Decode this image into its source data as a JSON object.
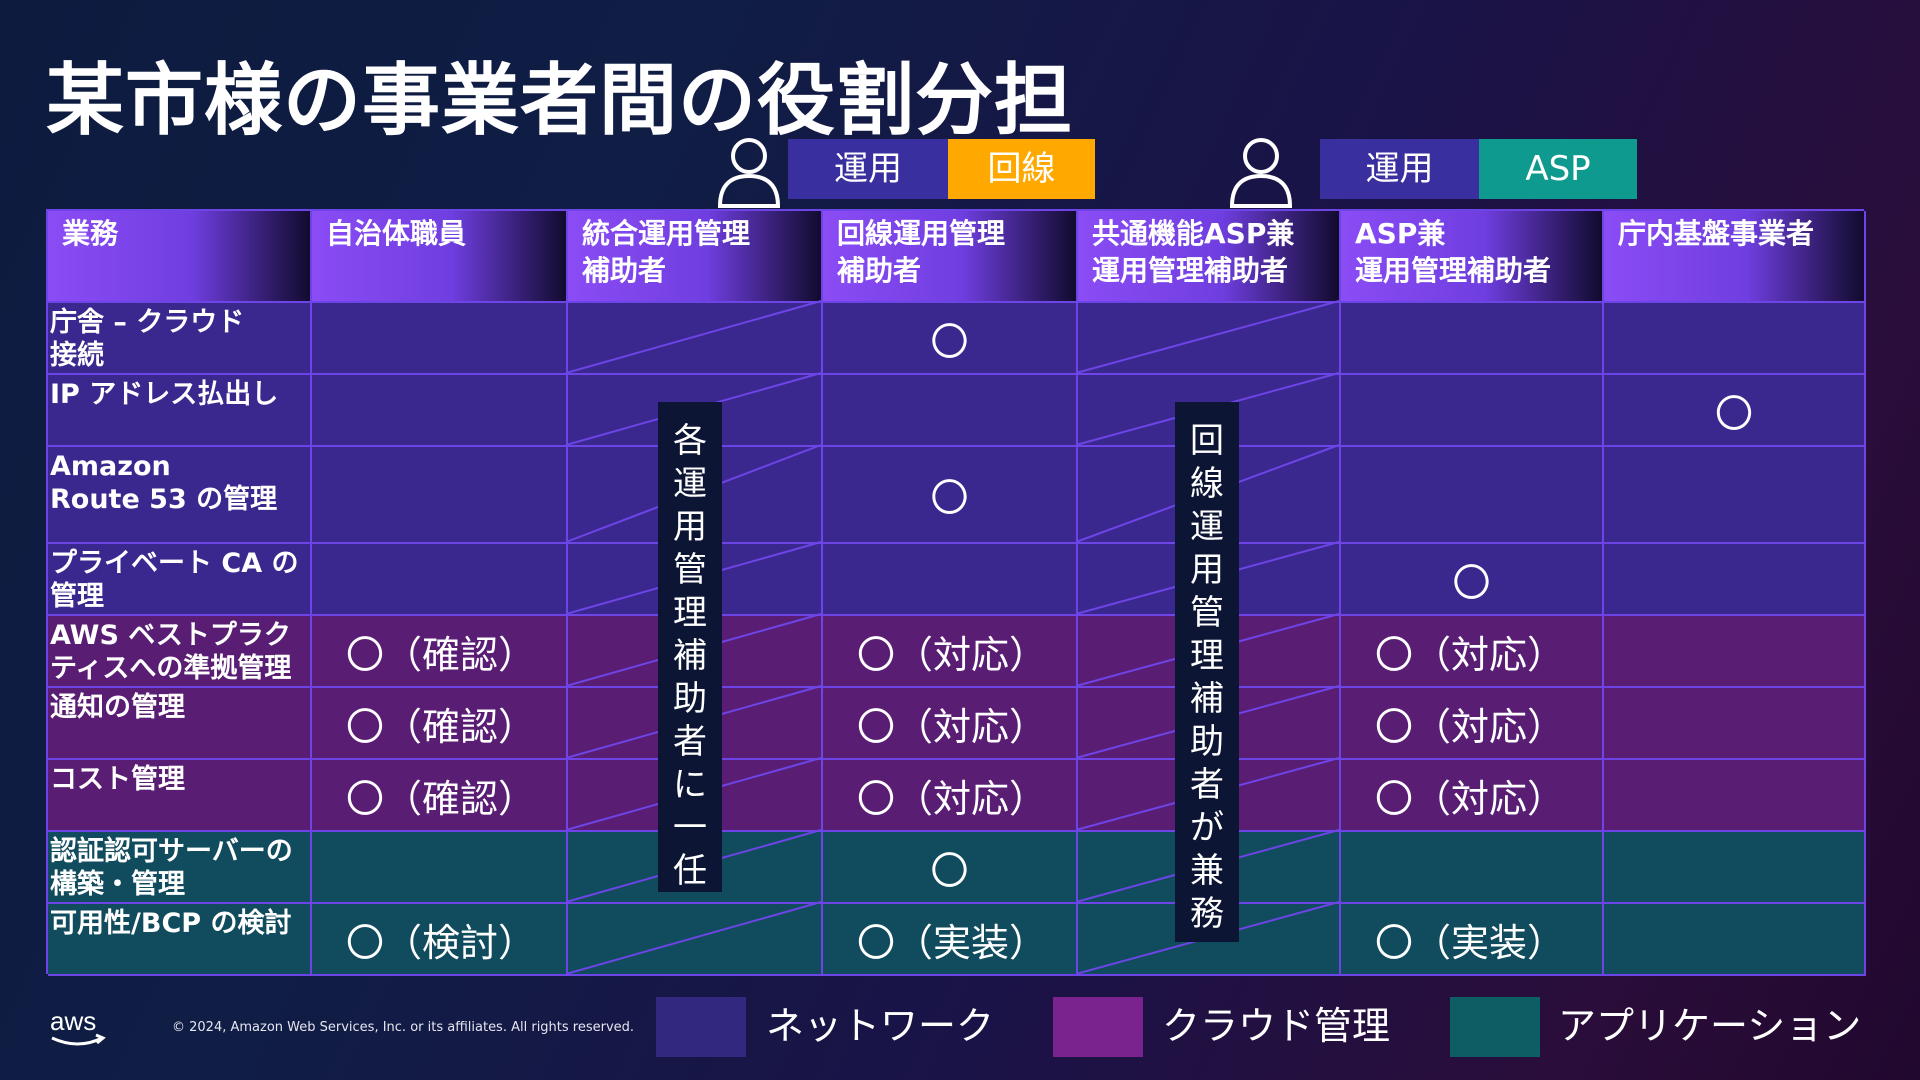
{
  "title": "某市様の事業者間の役割分担",
  "tags_left": {
    "ops": "運用",
    "line": "回線"
  },
  "tags_right": {
    "ops": "運用",
    "asp": "ASP"
  },
  "headers": [
    "業務",
    "自治体職員",
    "統合運用管理\n補助者",
    "回線運用管理\n補助者",
    "共通機能ASP兼\n運用管理補助者",
    "ASP兼\n運用管理補助者",
    "庁内基盤事業者"
  ],
  "rows": [
    {
      "label": "庁舎 – クラウド\n接続",
      "category": "net",
      "cells": [
        "",
        "",
        "〇",
        "",
        "",
        ""
      ]
    },
    {
      "label": "IP アドレス払出し",
      "category": "net",
      "cells": [
        "",
        "",
        "",
        "",
        "",
        "〇"
      ]
    },
    {
      "label": "Amazon\nRoute 53 の管理",
      "category": "net",
      "cells": [
        "",
        "",
        "〇",
        "",
        "",
        ""
      ]
    },
    {
      "label": "プライベート CA の\n管理",
      "category": "net",
      "cells": [
        "",
        "",
        "",
        "",
        "〇",
        ""
      ]
    },
    {
      "label": "AWS ベストプラク\nティスへの準拠管理",
      "category": "cld",
      "cells": [
        "〇（確認）",
        "",
        "〇（対応）",
        "",
        "〇（対応）",
        ""
      ]
    },
    {
      "label": "通知の管理",
      "category": "cld",
      "cells": [
        "〇（確認）",
        "",
        "〇（対応）",
        "",
        "〇（対応）",
        ""
      ]
    },
    {
      "label": "コスト管理",
      "category": "cld",
      "cells": [
        "〇（確認）",
        "",
        "〇（対応）",
        "",
        "〇（対応）",
        ""
      ]
    },
    {
      "label": "認証認可サーバーの\n構築・管理",
      "category": "app",
      "cells": [
        "",
        "",
        "〇",
        "",
        "",
        ""
      ]
    },
    {
      "label": "可用性/BCP の検討",
      "category": "app",
      "cells": [
        "〇（検討）",
        "",
        "〇（実装）",
        "",
        "〇（実装）",
        ""
      ]
    }
  ],
  "vertical_notes": {
    "left": "各運用管理補助者に一任",
    "right": "回線運用管理補助者が兼務"
  },
  "legend": {
    "network": "ネットワーク",
    "cloud": "クラウド管理",
    "application": "アプリケーション"
  },
  "colors": {
    "network": "#3a288f",
    "cloud": "#5a1d74",
    "application": "#114b5e",
    "legend_network": "#33287f",
    "legend_cloud": "#7a238e",
    "legend_application": "#0d5e64",
    "tag_ops": "#3a2f9e",
    "tag_line": "#ffa800",
    "tag_asp": "#0e9a8e",
    "grid_line": "#6d45e6"
  },
  "footer": {
    "logo_text": "aws",
    "copyright": "© 2024, Amazon Web Services, Inc. or its affiliates. All rights reserved."
  },
  "icons": {
    "person": "person-outline-icon",
    "logo": "aws-logo-icon"
  }
}
